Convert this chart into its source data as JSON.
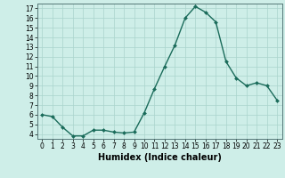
{
  "x": [
    0,
    1,
    2,
    3,
    4,
    5,
    6,
    7,
    8,
    9,
    10,
    11,
    12,
    13,
    14,
    15,
    16,
    17,
    18,
    19,
    20,
    21,
    22,
    23
  ],
  "y": [
    6.0,
    5.8,
    4.7,
    3.8,
    3.8,
    4.4,
    4.4,
    4.2,
    4.1,
    4.2,
    6.2,
    8.7,
    11.0,
    13.2,
    16.0,
    17.2,
    16.6,
    15.6,
    11.5,
    9.8,
    9.0,
    9.3,
    9.0,
    7.5
  ],
  "line_color": "#1a6b5a",
  "marker": "D",
  "marker_size": 2.0,
  "linewidth": 1.0,
  "xlabel": "Humidex (Indice chaleur)",
  "background_color": "#ceeee8",
  "grid_color": "#aad4cc",
  "xlim": [
    -0.5,
    23.5
  ],
  "ylim": [
    3.5,
    17.5
  ],
  "yticks": [
    4,
    5,
    6,
    7,
    8,
    9,
    10,
    11,
    12,
    13,
    14,
    15,
    16,
    17
  ],
  "xticks": [
    0,
    1,
    2,
    3,
    4,
    5,
    6,
    7,
    8,
    9,
    10,
    11,
    12,
    13,
    14,
    15,
    16,
    17,
    18,
    19,
    20,
    21,
    22,
    23
  ],
  "tick_fontsize": 5.5,
  "label_fontsize": 7.0
}
